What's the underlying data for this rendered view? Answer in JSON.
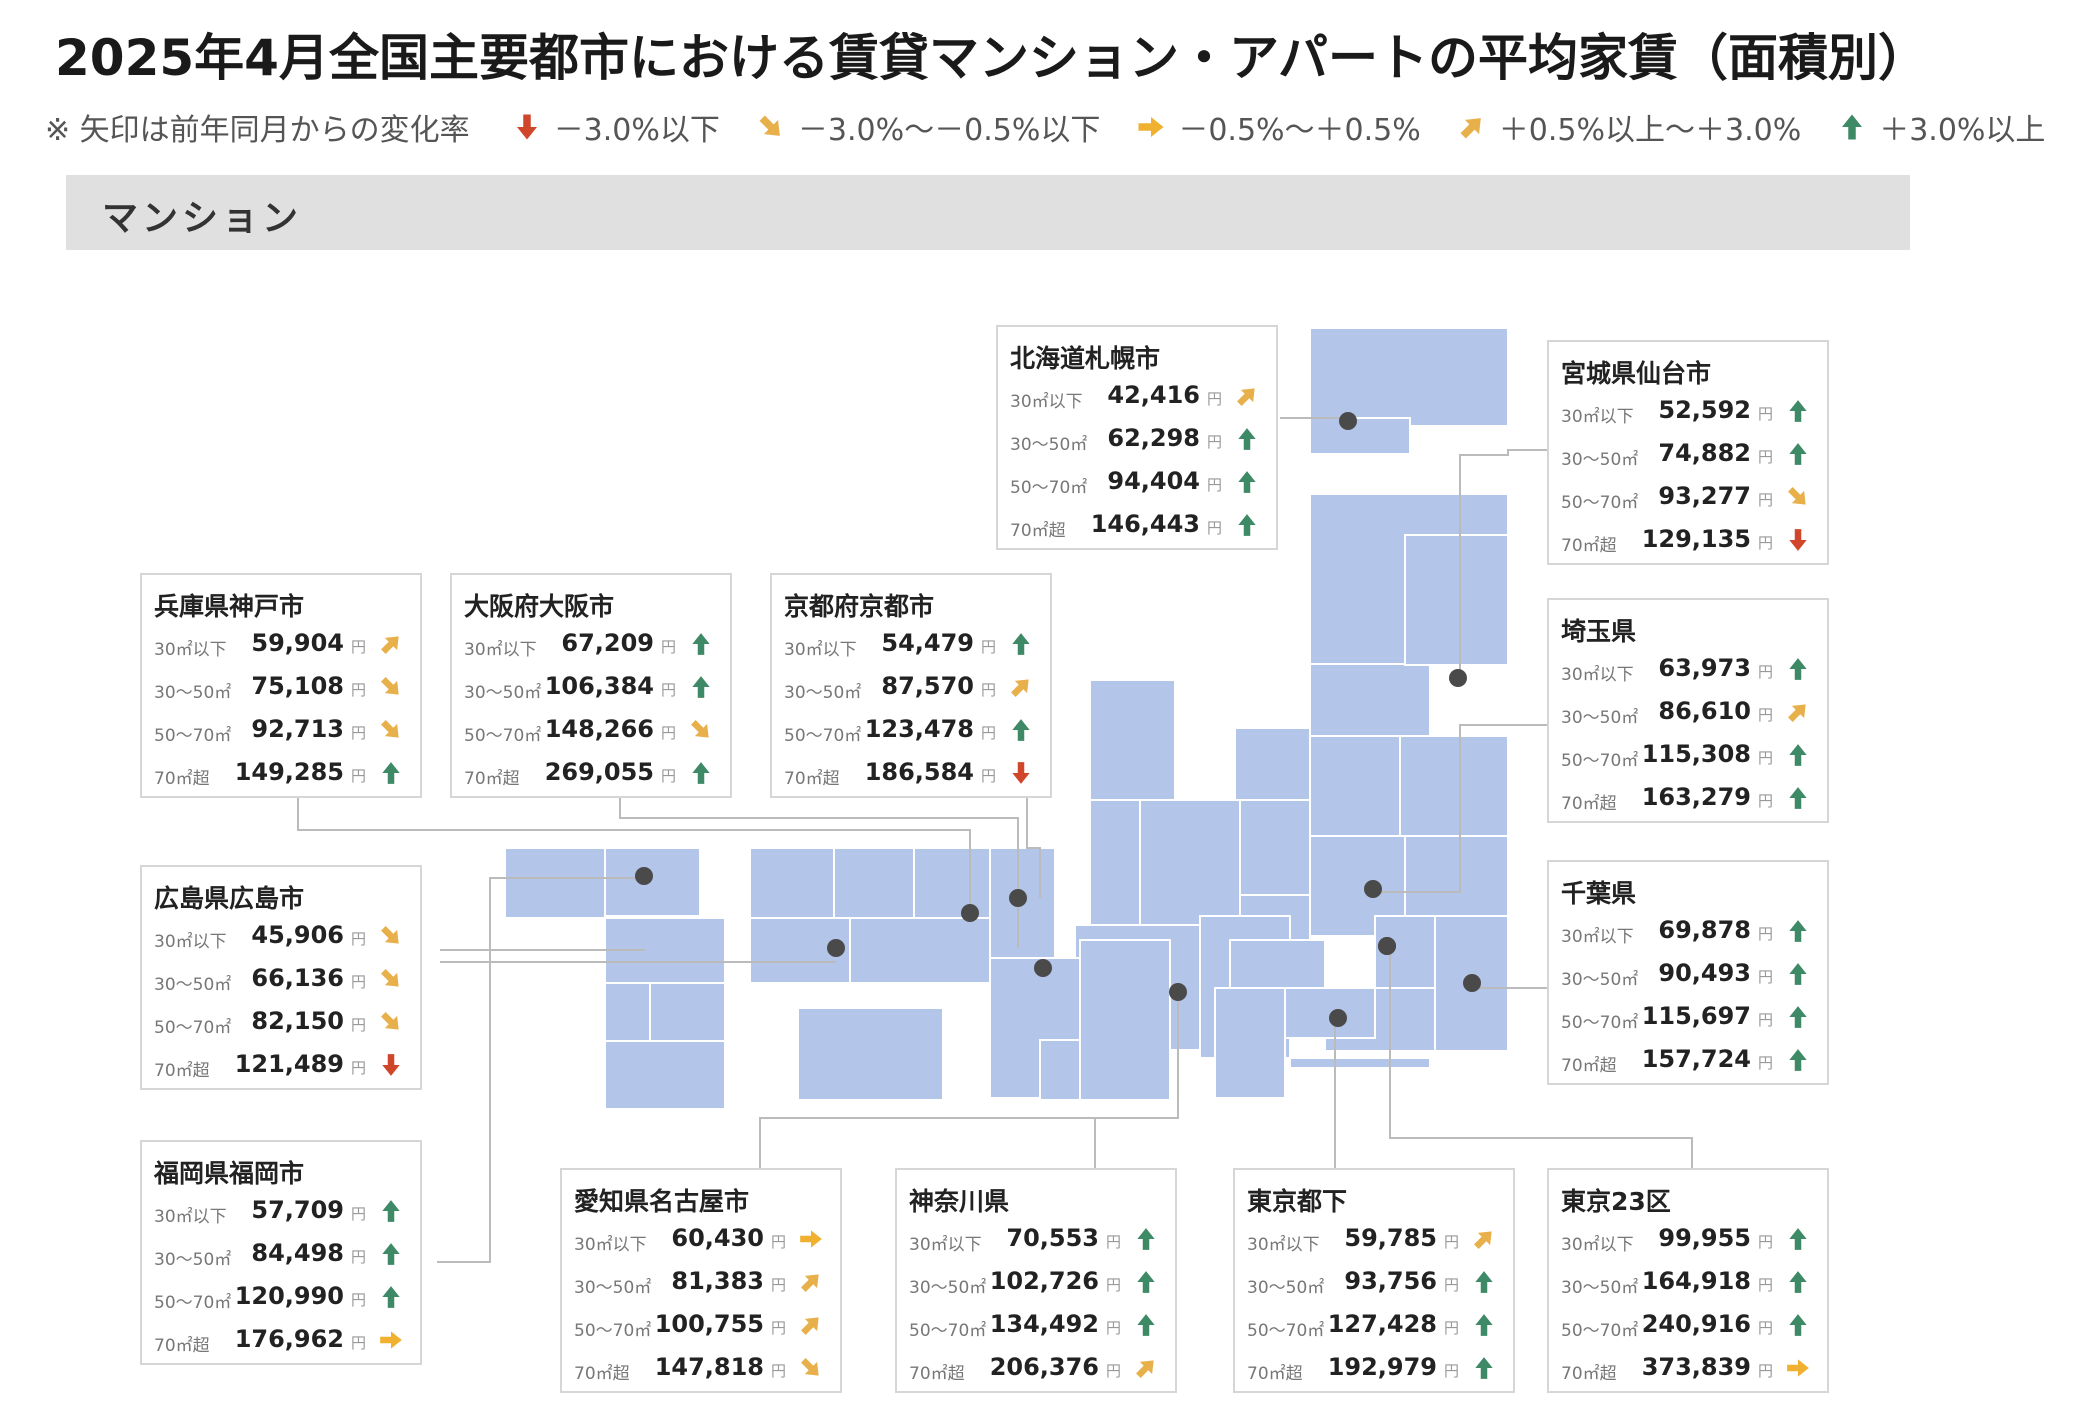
{
  "title": "2025年4月全国主要都市における賃貸マンション・アパートの平均家賃（面積別）",
  "legend": {
    "note": "※ 矢印は前年同月からの変化率",
    "items": [
      {
        "icon": "arrow-down-icon",
        "label": "－3.0%以下",
        "color": "#d0462a"
      },
      {
        "icon": "arrow-down-right-icon",
        "label": "－3.0%～－0.5%以下",
        "color": "#e7b04a"
      },
      {
        "icon": "arrow-right-icon",
        "label": "－0.5%～＋0.5%",
        "color": "#f0b030"
      },
      {
        "icon": "arrow-up-right-icon",
        "label": "＋0.5%以上～＋3.0%",
        "color": "#e7b04a"
      },
      {
        "icon": "arrow-up-icon",
        "label": "＋3.0%以上",
        "color": "#3f8a66"
      }
    ]
  },
  "section": "マンション",
  "colors": {
    "map": "#b3c5e8",
    "connector": "#bbbbbb",
    "dot": "#4a4a4a"
  },
  "labels": [
    "30㎡以下",
    "30～50㎡",
    "50～70㎡",
    "70㎡超"
  ],
  "yen": "円",
  "cities": [
    {
      "name": "北海道札幌市",
      "values": [
        "42,416",
        "62,298",
        "94,404",
        "146,443"
      ],
      "trends": [
        "up-right",
        "up",
        "up",
        "up"
      ]
    },
    {
      "name": "宮城県仙台市",
      "values": [
        "52,592",
        "74,882",
        "93,277",
        "129,135"
      ],
      "trends": [
        "up",
        "up",
        "down-right",
        "down"
      ]
    },
    {
      "name": "兵庫県神戸市",
      "values": [
        "59,904",
        "75,108",
        "92,713",
        "149,285"
      ],
      "trends": [
        "up-right",
        "down-right",
        "down-right",
        "up"
      ]
    },
    {
      "name": "大阪府大阪市",
      "values": [
        "67,209",
        "106,384",
        "148,266",
        "269,055"
      ],
      "trends": [
        "up",
        "up",
        "down-right",
        "up"
      ]
    },
    {
      "name": "京都府京都市",
      "values": [
        "54,479",
        "87,570",
        "123,478",
        "186,584"
      ],
      "trends": [
        "up",
        "up-right",
        "up",
        "down"
      ]
    },
    {
      "name": "埼玉県",
      "values": [
        "63,973",
        "86,610",
        "115,308",
        "163,279"
      ],
      "trends": [
        "up",
        "up-right",
        "up",
        "up"
      ]
    },
    {
      "name": "広島県広島市",
      "values": [
        "45,906",
        "66,136",
        "82,150",
        "121,489"
      ],
      "trends": [
        "down-right",
        "down-right",
        "down-right",
        "down"
      ]
    },
    {
      "name": "千葉県",
      "values": [
        "69,878",
        "90,493",
        "115,697",
        "157,724"
      ],
      "trends": [
        "up",
        "up",
        "up",
        "up"
      ]
    },
    {
      "name": "福岡県福岡市",
      "values": [
        "57,709",
        "84,498",
        "120,990",
        "176,962"
      ],
      "trends": [
        "up",
        "up",
        "up",
        "right"
      ]
    },
    {
      "name": "愛知県名古屋市",
      "values": [
        "60,430",
        "81,383",
        "100,755",
        "147,818"
      ],
      "trends": [
        "right",
        "up-right",
        "up-right",
        "down-right"
      ]
    },
    {
      "name": "神奈川県",
      "values": [
        "70,553",
        "102,726",
        "134,492",
        "206,376"
      ],
      "trends": [
        "up",
        "up",
        "up",
        "up-right"
      ]
    },
    {
      "name": "東京都下",
      "values": [
        "59,785",
        "93,756",
        "127,428",
        "192,979"
      ],
      "trends": [
        "up-right",
        "up",
        "up",
        "up"
      ]
    },
    {
      "name": "東京23区",
      "values": [
        "99,955",
        "164,918",
        "240,916",
        "373,839"
      ],
      "trends": [
        "up",
        "up",
        "up",
        "right"
      ]
    }
  ]
}
